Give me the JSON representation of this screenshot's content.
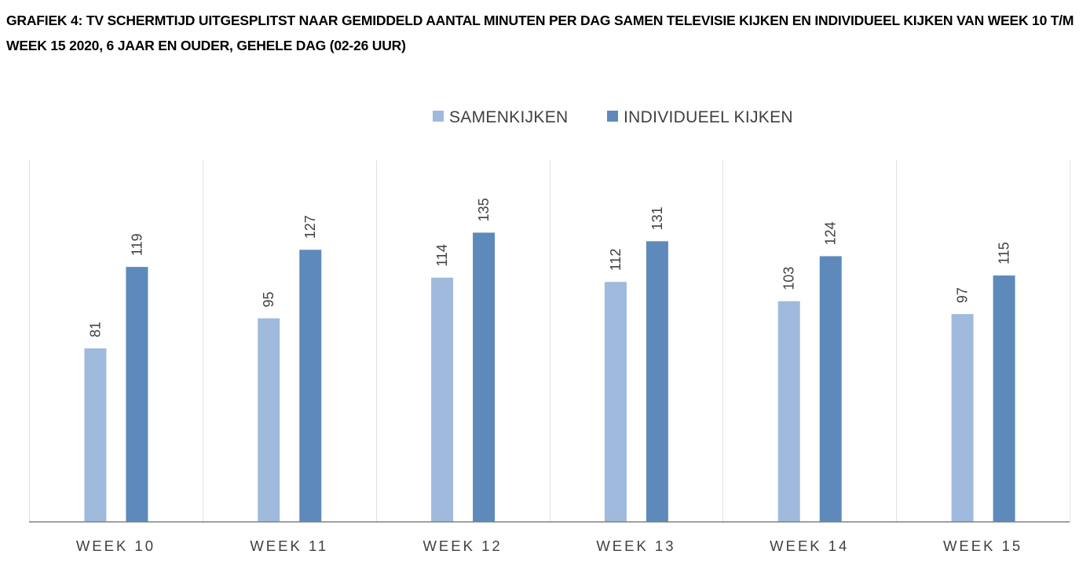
{
  "chart_data": {
    "type": "bar",
    "title": "GRAFIEK 4: TV SCHERMTIJD UITGESPLITST NAAR GEMIDDELD AANTAL MINUTEN PER DAG SAMEN TELEVISIE KIJKEN EN INDIVIDUEEL KIJKEN VAN WEEK 10 T/M WEEK 15 2020, 6 JAAR EN OUDER, GEHELE DAG (02-26 UUR)",
    "categories": [
      "WEEK 10",
      "WEEK 11",
      "WEEK 12",
      "WEEK 13",
      "WEEK 14",
      "WEEK 15"
    ],
    "series": [
      {
        "name": "SAMENKIJKEN",
        "color": "#9fbadd",
        "values": [
          81,
          95,
          114,
          112,
          103,
          97
        ]
      },
      {
        "name": "INDIVIDUEEL KIJKEN",
        "color": "#5d8aba",
        "values": [
          119,
          127,
          135,
          131,
          124,
          115
        ]
      }
    ],
    "xlabel": "",
    "ylabel": "",
    "ylim": [
      0,
      135
    ],
    "grid": "vertical category separators",
    "legend": "top-center",
    "colors": {
      "axis": "#808080",
      "gridline": "#e2e2e2",
      "label": "#404040"
    }
  }
}
